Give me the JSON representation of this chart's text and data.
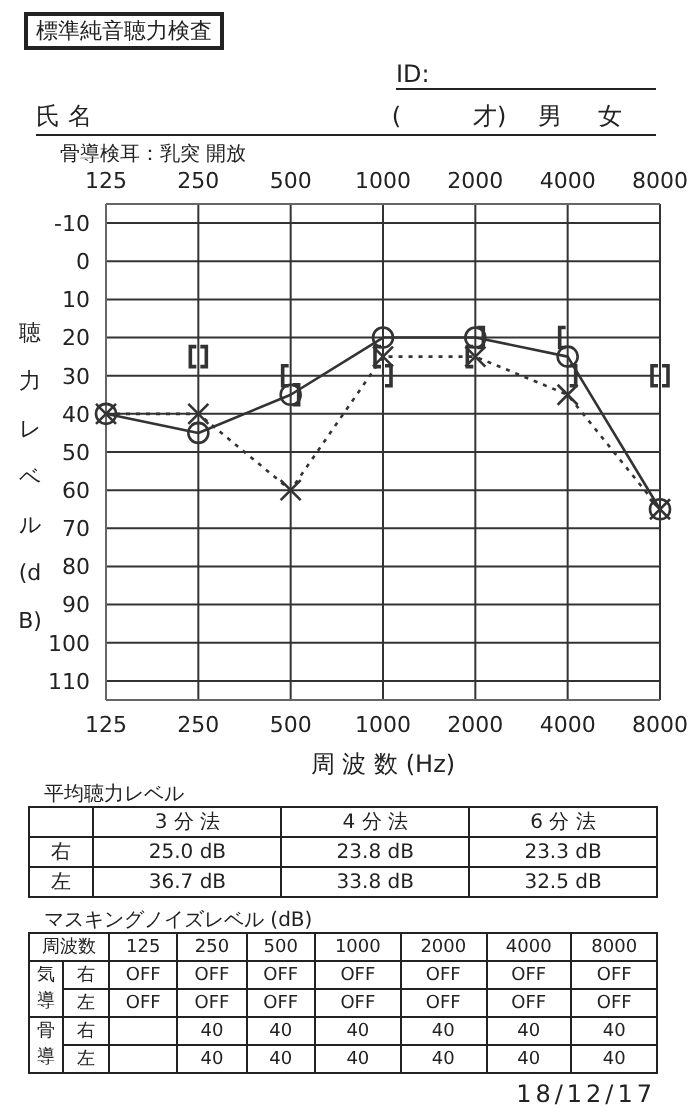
{
  "chart_data": {
    "type": "line",
    "title": "標準純音聴力検査",
    "xlabel": "周 波 数 (Hz)",
    "ylabel": "聴力レベル (dB)",
    "categories": [
      "125",
      "250",
      "500",
      "1000",
      "2000",
      "4000",
      "8000"
    ],
    "ylim": [
      115,
      -15
    ],
    "yticks": [
      -10,
      0,
      10,
      20,
      30,
      40,
      50,
      60,
      70,
      80,
      90,
      100,
      110
    ],
    "grid": true,
    "series": [
      {
        "color": "#333333",
        "values": [
          40,
          45,
          35,
          20,
          20,
          25,
          65
        ],
        "marker": "circle",
        "line_style": "solid"
      },
      {
        "color": "#333333",
        "values": [
          40,
          40,
          60,
          25,
          25,
          35,
          65
        ],
        "marker": "cross",
        "line_style": "dotted"
      },
      {
        "type": "scatter",
        "color": "#333333",
        "values": [
          null,
          25,
          30,
          25,
          25,
          20,
          30
        ]
      },
      {
        "type": "scatter",
        "color": "#333333",
        "values": [
          null,
          25,
          35,
          30,
          20,
          30,
          30
        ]
      }
    ],
    "annotations": [
      "ID:",
      "氏 名",
      "(　　　才)",
      "男",
      "女",
      "骨導検耳：乳突 開放",
      "平均聴力レベル",
      "3 分 法",
      "4 分 法",
      "6 分 法",
      "右",
      "25.0 dB",
      "23.8 dB",
      "23.3 dB",
      "左",
      "36.7 dB",
      "33.8 dB",
      "32.5 dB",
      "マスキングノイズレベル (dB)",
      "周波数",
      "125",
      "250",
      "500",
      "1000",
      "2000",
      "4000",
      "8000",
      "気導",
      "右",
      "OFF",
      "OFF",
      "OFF",
      "OFF",
      "OFF",
      "OFF",
      "OFF",
      "左",
      "OFF",
      "OFF",
      "OFF",
      "OFF",
      "OFF",
      "OFF",
      "OFF",
      "骨導",
      "右",
      "40",
      "40",
      "40",
      "40",
      "40",
      "40",
      "左",
      "40",
      "40",
      "40",
      "40",
      "40",
      "40",
      "18/12/17"
    ]
  }
}
